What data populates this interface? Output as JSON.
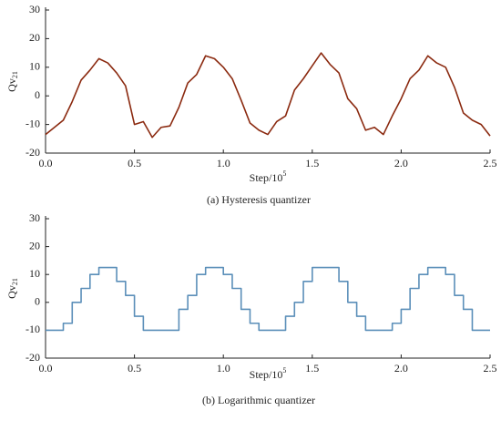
{
  "chart_data": [
    {
      "type": "line",
      "caption": "(a) Hysteresis quantizer",
      "ylabel": "Qv",
      "ylabel_sub": "21",
      "xlabel": "Step/10",
      "xlabel_sup": "5",
      "xlim": [
        0,
        2.5
      ],
      "ylim": [
        -20,
        30
      ],
      "xticks": [
        {
          "value": 0,
          "label": "0.0"
        },
        0.5,
        {
          "value": 1,
          "label": "1.0"
        },
        1.5,
        {
          "value": 2,
          "label": "2.0"
        },
        2.5
      ],
      "yticks": [
        -20,
        -10,
        0,
        10,
        20,
        30
      ],
      "series": [
        {
          "color": "#8b2a10",
          "x": [
            0,
            0.05,
            0.1,
            0.15,
            0.2,
            0.25,
            0.3,
            0.35,
            0.4,
            0.45,
            0.5,
            0.55,
            0.6,
            0.65,
            0.7,
            0.75,
            0.8,
            0.85,
            0.9,
            0.95,
            1,
            1.05,
            1.1,
            1.15,
            1.2,
            1.25,
            1.3,
            1.35,
            1.4,
            1.45,
            1.5,
            1.55,
            1.6,
            1.65,
            1.7,
            1.75,
            1.8,
            1.85,
            1.9,
            1.95,
            2,
            2.05,
            2.1,
            2.15,
            2.2,
            2.25,
            2.3,
            2.35,
            2.4,
            2.45,
            2.5
          ],
          "values": [
            -13.5,
            -11,
            -8.5,
            -2,
            5.5,
            9,
            13,
            11.5,
            8,
            3.5,
            -10,
            -9,
            -14.5,
            -11,
            -10.5,
            -4,
            4.5,
            7.5,
            14,
            13,
            10,
            6,
            -1.5,
            -9.5,
            -12,
            -13.5,
            -9,
            -7,
            2,
            6,
            10.5,
            15,
            11,
            8,
            -1,
            -4.5,
            -12,
            -11,
            -13.5,
            -7,
            -1,
            6,
            9,
            14,
            11.5,
            10,
            3,
            -6,
            -8.5,
            -10,
            -14
          ]
        }
      ]
    },
    {
      "type": "step",
      "caption": "(b) Logarithmic quantizer",
      "ylabel": "Qv",
      "ylabel_sub": "21",
      "xlabel": "Step/10",
      "xlabel_sup": "5",
      "xlim": [
        0,
        2.5
      ],
      "ylim": [
        -20,
        30
      ],
      "xticks": [
        {
          "value": 0,
          "label": "0.0"
        },
        0.5,
        {
          "value": 1,
          "label": "1.0"
        },
        1.5,
        {
          "value": 2,
          "label": "2.0"
        },
        2.5
      ],
      "yticks": [
        -20,
        -10,
        0,
        10,
        20,
        30
      ],
      "series": [
        {
          "color": "#5b8fb9",
          "x": [
            0,
            0.05,
            0.1,
            0.15,
            0.2,
            0.25,
            0.3,
            0.35,
            0.4,
            0.45,
            0.5,
            0.55,
            0.6,
            0.65,
            0.7,
            0.75,
            0.8,
            0.85,
            0.9,
            0.95,
            1,
            1.05,
            1.1,
            1.15,
            1.2,
            1.25,
            1.3,
            1.35,
            1.4,
            1.45,
            1.5,
            1.55,
            1.6,
            1.65,
            1.7,
            1.75,
            1.8,
            1.85,
            1.9,
            1.95,
            2,
            2.05,
            2.1,
            2.15,
            2.2,
            2.25,
            2.3,
            2.35,
            2.4,
            2.45,
            2.5
          ],
          "values": [
            -10,
            -10,
            -7.5,
            0,
            5,
            10,
            12.5,
            12.5,
            7.5,
            2.5,
            -5,
            -10,
            -10,
            -10,
            -10,
            -2.5,
            2.5,
            10,
            12.5,
            12.5,
            10,
            5,
            -2.5,
            -7.5,
            -10,
            -10,
            -10,
            -5,
            0,
            7.5,
            12.5,
            12.5,
            12.5,
            7.5,
            0,
            -5,
            -10,
            -10,
            -10,
            -7.5,
            -2.5,
            5,
            10,
            12.5,
            12.5,
            10,
            2.5,
            -2.5,
            -10,
            -10,
            -10
          ]
        }
      ]
    }
  ]
}
